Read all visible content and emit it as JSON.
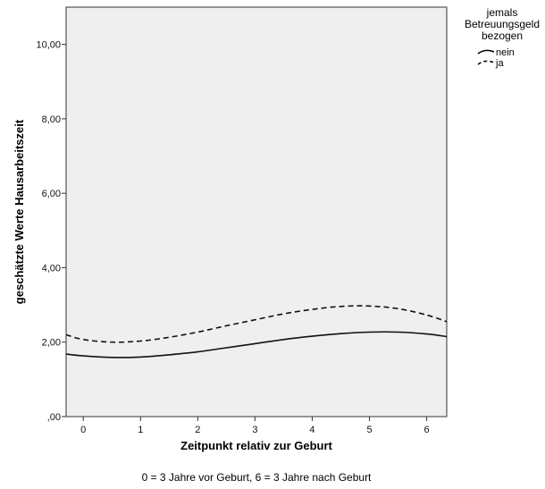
{
  "chart_data": {
    "type": "line",
    "xlabel": "Zeitpunkt relativ zur Geburt",
    "ylabel": "geschätzte Werte Hausarbeitszeit",
    "note": "0 = 3 Jahre vor Geburt, 6 = 3 Jahre nach Geburt",
    "xlim": [
      -0.3,
      6.35
    ],
    "ylim": [
      0,
      11
    ],
    "x_ticks": [
      0,
      1,
      2,
      3,
      4,
      5,
      6
    ],
    "x_tick_labels": [
      "0",
      "1",
      "2",
      "3",
      "4",
      "5",
      "6"
    ],
    "y_ticks": [
      0,
      2,
      4,
      6,
      8,
      10
    ],
    "y_tick_labels": [
      ",00",
      "2,00",
      "4,00",
      "6,00",
      "8,00",
      "10,00"
    ],
    "grid": false,
    "background": "#efefef",
    "legend": {
      "title_lines": [
        "jemals",
        "Betreuungsgeld",
        "bezogen"
      ],
      "placement": "right-outside-top"
    },
    "series": [
      {
        "name": "nein",
        "style": "solid",
        "x": [
          -0.3,
          0,
          0.5,
          1,
          1.5,
          2,
          2.5,
          3,
          3.5,
          4,
          4.5,
          5,
          5.5,
          6,
          6.35
        ],
        "y": [
          1.68,
          1.63,
          1.59,
          1.6,
          1.66,
          1.74,
          1.85,
          1.96,
          2.07,
          2.16,
          2.23,
          2.27,
          2.27,
          2.22,
          2.15
        ]
      },
      {
        "name": "ja",
        "style": "dashed",
        "x": [
          -0.3,
          0,
          0.5,
          1,
          1.5,
          2,
          2.5,
          3,
          3.5,
          4,
          4.5,
          5,
          5.5,
          6,
          6.35
        ],
        "y": [
          2.2,
          2.07,
          2.0,
          2.03,
          2.13,
          2.27,
          2.44,
          2.6,
          2.76,
          2.88,
          2.96,
          2.97,
          2.9,
          2.73,
          2.55
        ]
      }
    ]
  }
}
